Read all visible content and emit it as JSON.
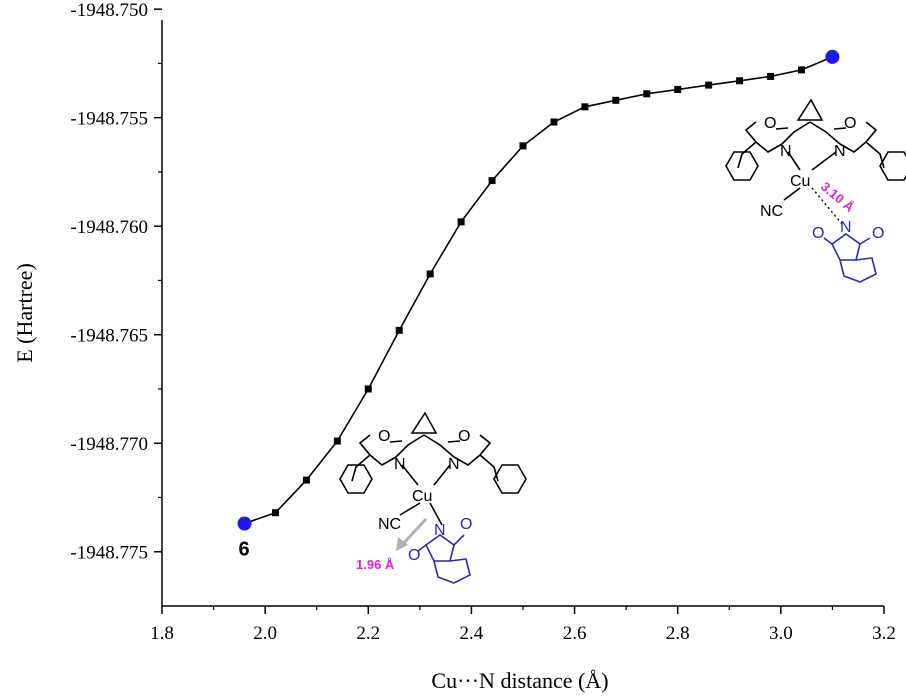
{
  "chart_data": {
    "type": "scatter",
    "title": "",
    "xlabel": "Cu···N distance (Å)",
    "ylabel": "E (Hartree)",
    "xlim": [
      1.8,
      3.2
    ],
    "ylim": [
      -1948.7775,
      -1948.7505
    ],
    "xticks": [
      "1.8",
      "2.0",
      "2.2",
      "2.4",
      "2.6",
      "2.8",
      "3.0",
      "3.2"
    ],
    "yticks": [
      "-1948.750",
      "-1948.755",
      "-1948.760",
      "-1948.765",
      "-1948.770",
      "-1948.775"
    ],
    "grid": false,
    "series": [
      {
        "marker": "square",
        "color": "#000000",
        "x": [
          1.96,
          2.02,
          2.08,
          2.14,
          2.2,
          2.26,
          2.32,
          2.38,
          2.44,
          2.5,
          2.56,
          2.62,
          2.68,
          2.74,
          2.8,
          2.86,
          2.92,
          2.98,
          3.04,
          3.1
        ],
        "y": [
          -1948.7737,
          -1948.7732,
          -1948.7717,
          -1948.7699,
          -1948.7675,
          -1948.7648,
          -1948.7622,
          -1948.7598,
          -1948.7579,
          -1948.7563,
          -1948.7552,
          -1948.7545,
          -1948.7542,
          -1948.7539,
          -1948.7537,
          -1948.7535,
          -1948.7533,
          -1948.7531,
          -1948.7528,
          -1948.7522
        ]
      }
    ],
    "endpoints": [
      {
        "x": 1.96,
        "y": -1948.7737,
        "color": "#1a1aee",
        "label": "6"
      },
      {
        "x": 3.1,
        "y": -1948.7522,
        "color": "#1a1aee",
        "label": ""
      }
    ],
    "annotations": {
      "low_structure": {
        "cu": "Cu",
        "nc": "NC",
        "o1": "O",
        "o2": "O",
        "n1": "N",
        "n2": "N",
        "imide_n": "N",
        "imide_o1": "O",
        "imide_o2": "O",
        "distance": "1.96 Å"
      },
      "high_structure": {
        "cu": "Cu",
        "nc": "NC",
        "o1": "O",
        "o2": "O",
        "n1": "N",
        "n2": "N",
        "imide_n": "N",
        "imide_o1": "O",
        "imide_o2": "O",
        "distance": "3.10 Å"
      }
    },
    "colors": {
      "curve": "#000000",
      "endpoint": "#1a1aee",
      "imide": "#2b2bb0",
      "distance_label": "#e020d0",
      "arrow": "#b0b0b0"
    }
  }
}
